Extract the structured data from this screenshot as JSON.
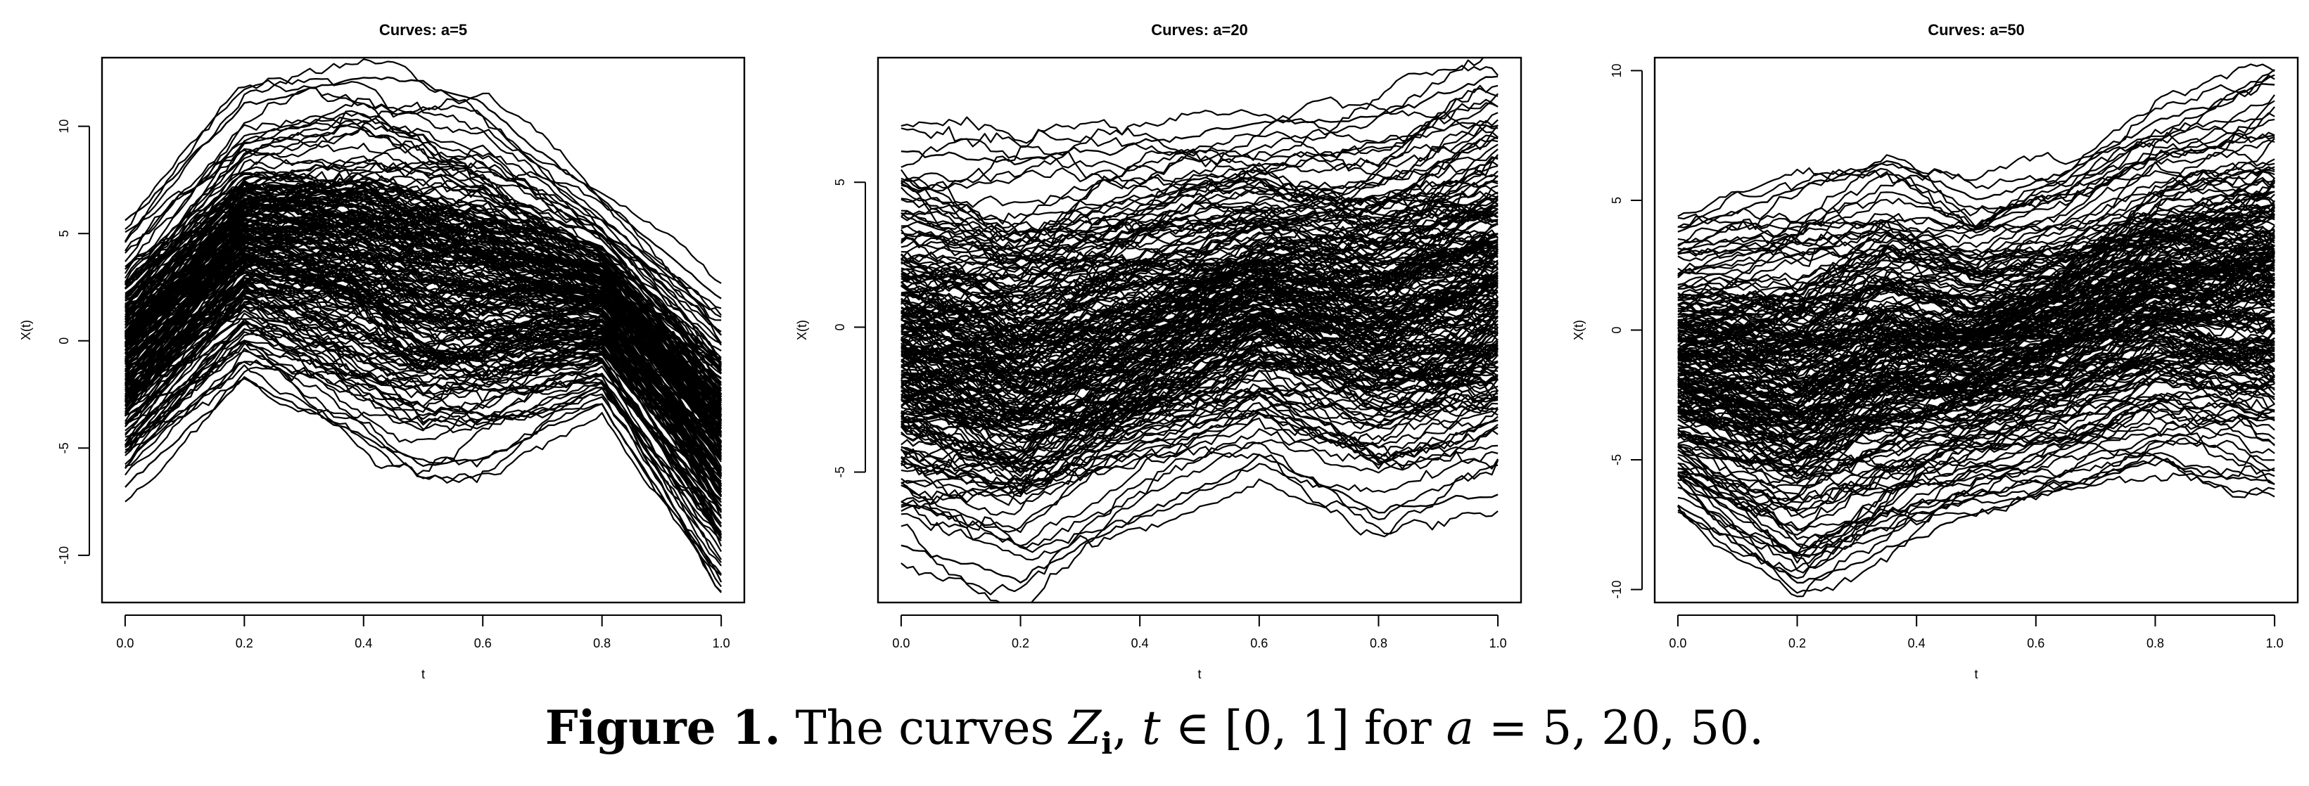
{
  "figure": {
    "caption_label": "Figure 1.",
    "caption_pre": " The curves ",
    "caption_var": "Z",
    "caption_sub": "i",
    "caption_mid": ", ",
    "caption_t": "t",
    "caption_in": " ∈ [0, 1] for ",
    "caption_a": "a",
    "caption_post": " = 5, 20, 50."
  },
  "chart_data": [
    {
      "type": "line",
      "title": "Curves: a=5",
      "xlabel": "t",
      "ylabel": "X(t)",
      "xlim": [
        0,
        1
      ],
      "ylim": [
        -12.2,
        13.2
      ],
      "xticks": [
        0.0,
        0.2,
        0.4,
        0.6,
        0.8,
        1.0
      ],
      "xtick_labels": [
        "0.0",
        "0.2",
        "0.4",
        "0.6",
        "0.8",
        "1.0"
      ],
      "yticks": [
        -10,
        -5,
        0,
        5,
        10
      ],
      "ytick_labels": [
        "-10",
        "-5",
        "0",
        "5",
        "10"
      ],
      "grid": false,
      "line_color": "#000000",
      "n_curves": 220,
      "envelope": {
        "t": [
          0.0,
          0.2,
          0.4,
          0.5,
          0.6,
          0.8,
          1.0
        ],
        "upper": [
          5.5,
          11.0,
          12.3,
          12.0,
          11.0,
          6.5,
          2.0
        ],
        "lower": [
          -6.8,
          -1.8,
          -4.5,
          -5.8,
          -5.5,
          -3.0,
          -11.3
        ]
      }
    },
    {
      "type": "line",
      "title": "Curves: a=20",
      "xlabel": "t",
      "ylabel": "X(t)",
      "xlim": [
        0,
        1
      ],
      "ylim": [
        -9.5,
        9.3
      ],
      "xticks": [
        0.0,
        0.2,
        0.4,
        0.6,
        0.8,
        1.0
      ],
      "xtick_labels": [
        "0.0",
        "0.2",
        "0.4",
        "0.6",
        "0.8",
        "1.0"
      ],
      "yticks": [
        -5,
        0,
        5
      ],
      "ytick_labels": [
        "-5",
        "0",
        "5"
      ],
      "grid": false,
      "line_color": "#000000",
      "n_curves": 220,
      "envelope": {
        "t": [
          0.0,
          0.2,
          0.4,
          0.6,
          0.8,
          1.0
        ],
        "upper": [
          6.1,
          5.7,
          6.3,
          7.0,
          7.2,
          8.7
        ],
        "lower": [
          -7.5,
          -8.7,
          -6.5,
          -4.5,
          -6.2,
          -5.8
        ]
      }
    },
    {
      "type": "line",
      "title": "Curves: a=50",
      "xlabel": "t",
      "ylabel": "X(t)",
      "xlim": [
        0,
        1
      ],
      "ylim": [
        -10.5,
        10.5
      ],
      "xticks": [
        0.0,
        0.2,
        0.4,
        0.6,
        0.8,
        1.0
      ],
      "xtick_labels": [
        "0.0",
        "0.2",
        "0.4",
        "0.6",
        "0.8",
        "1.0"
      ],
      "yticks": [
        -10,
        -5,
        0,
        5,
        10
      ],
      "ytick_labels": [
        "-10",
        "-5",
        "0",
        "5",
        "10"
      ],
      "grid": false,
      "line_color": "#000000",
      "n_curves": 220,
      "envelope": {
        "t": [
          0.0,
          0.2,
          0.35,
          0.5,
          0.65,
          0.8,
          1.0
        ],
        "upper": [
          3.8,
          5.5,
          6.5,
          5.0,
          6.0,
          8.0,
          9.5
        ],
        "lower": [
          -6.8,
          -9.8,
          -8.5,
          -7.0,
          -6.0,
          -5.0,
          -6.0
        ]
      }
    }
  ]
}
